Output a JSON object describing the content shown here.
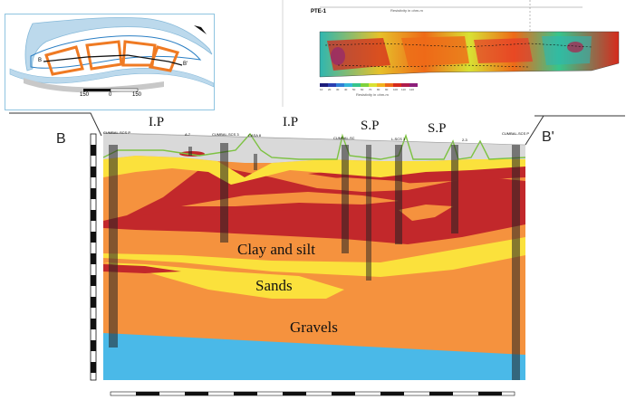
{
  "map_inset": {
    "scale_labels": [
      "150",
      "0",
      "150"
    ],
    "section_start_label": "B",
    "section_end_label": "B'"
  },
  "ert_panel": {
    "profile_id": "PTE-1",
    "top_axis_label": "Resistivity in ohm-m",
    "colorbar_caption": "Resistivity in ohm-m",
    "colorbar_colors": [
      "#1c1c7a",
      "#2a3fb0",
      "#2f7fd6",
      "#35b7d8",
      "#36c58c",
      "#7ed23d",
      "#d8e233",
      "#f2b21e",
      "#ee6a18",
      "#d62a1c",
      "#b01c4a",
      "#8c1f7a"
    ],
    "tick_texts": [
      "10",
      "20",
      "30",
      "40",
      "50",
      "60",
      "70",
      "80",
      "90",
      "100",
      "110",
      "120"
    ]
  },
  "section": {
    "left_label": "B",
    "right_label": "B'",
    "header_labels": [
      {
        "id": "ip1",
        "text": "I.P"
      },
      {
        "id": "ip2",
        "text": "I.P"
      },
      {
        "id": "sp1",
        "text": "S.P"
      },
      {
        "id": "sp2",
        "text": "S.P"
      }
    ],
    "well_labels": [
      "CUMBAL-SCS P",
      "A.7",
      "CUMBAL-SCS 3",
      "CASA 8",
      "CUMBAL-SC",
      "L-SCS 3",
      "2-3",
      "CUMBAL-SCS P"
    ],
    "layer_labels": {
      "clay": "Clay and silt",
      "sands": "Sands",
      "gravels": "Gravels"
    },
    "colors": {
      "gravels": "#f5923e",
      "sands": "#fbe13c",
      "clay": "#c2282b",
      "base": "#4ab9e8",
      "topsoil": "#d9d9d9",
      "topo_line": "#7dc242"
    }
  }
}
